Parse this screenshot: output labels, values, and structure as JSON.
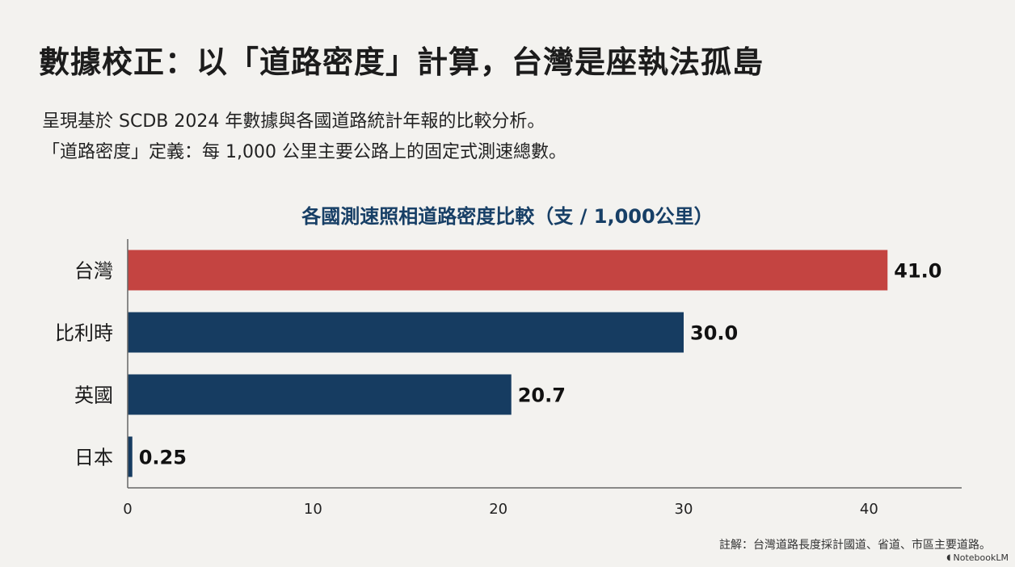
{
  "title": "數據校正：以「道路密度」計算，台灣是座執法孤島",
  "subtitle_lines": [
    "呈現基於 SCDB 2024 年數據與各國道路統計年報的比較分析。",
    "「道路密度」定義：每 1,000 公里主要公路上的固定式測速總數。"
  ],
  "footnote": "註解：台灣道路長度採計國道、省道、市區主要道路。",
  "brand": "NotebookLM",
  "colors": {
    "highlight": "#c44441",
    "bar": "#163c61",
    "title": "#173f66"
  },
  "chart_data": {
    "type": "bar",
    "orientation": "horizontal",
    "title": "各國測速照相道路密度比較（支 / 1,000公里）",
    "categories": [
      "台灣",
      "比利時",
      "英國",
      "日本"
    ],
    "values": [
      41.0,
      30.0,
      20.7,
      0.25
    ],
    "value_labels": [
      "41.0",
      "30.0",
      "20.7",
      "0.25"
    ],
    "highlight_index": 0,
    "xlim": [
      0,
      45
    ],
    "xticks": [
      0,
      10,
      20,
      30,
      40
    ],
    "grid": false,
    "xlabel": "",
    "ylabel": ""
  }
}
